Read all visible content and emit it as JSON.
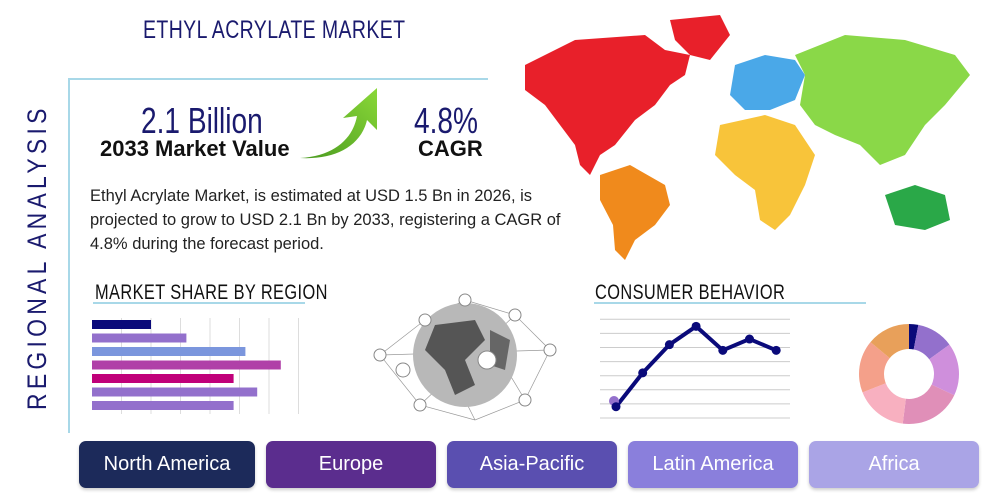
{
  "header": {
    "title": "ETHYL ACRYLATE MARKET",
    "side_label": "REGIONAL ANALYSIS"
  },
  "stats": {
    "market_value": "2.1 Billion",
    "market_value_label": "2033 Market Value",
    "cagr": "4.8%",
    "cagr_label": "CAGR"
  },
  "description": "Ethyl Acrylate Market, is estimated at USD 1.5 Bn in 2026, is projected to grow to USD 2.1 Bn by 2033, registering a CAGR of 4.8% during the forecast period.",
  "sections": {
    "market_share": "MARKET SHARE BY REGION",
    "consumer_behavior": "CONSUMER BEHAVIOR"
  },
  "chart_data": [
    {
      "type": "bar",
      "orientation": "horizontal",
      "values": [
        2,
        3.2,
        5.2,
        6.4,
        4.8,
        5.6,
        4.8
      ],
      "colors": [
        "#0a0a7a",
        "#9370cc",
        "#7b96dd",
        "#b040a8",
        "#c0007a",
        "#9370cc",
        "#9370cc"
      ],
      "xlim": [
        0,
        7
      ],
      "grid": true
    },
    {
      "type": "line",
      "values": [
        0.8,
        3.2,
        5.2,
        6.5,
        4.8,
        5.6,
        4.8
      ],
      "color": "#0a0a7a",
      "ylim": [
        0,
        7
      ],
      "grid": true
    },
    {
      "type": "pie",
      "donut": true,
      "values": [
        3,
        12,
        17,
        20,
        17,
        17,
        14
      ],
      "colors": [
        "#0a0a7a",
        "#9370cc",
        "#cf8fdc",
        "#e08fb8",
        "#f8b0c0",
        "#f4a08a",
        "#e8a05a"
      ]
    }
  ],
  "regions": [
    {
      "label": "North America",
      "color": "#1c2a5a"
    },
    {
      "label": "Europe",
      "color": "#5b2d8e"
    },
    {
      "label": "Asia-Pacific",
      "color": "#5a4fb0"
    },
    {
      "label": "Latin America",
      "color": "#8a7fdc"
    },
    {
      "label": "Africa",
      "color": "#aaa4e6"
    }
  ],
  "map_colors": {
    "north_america": "#e8202a",
    "south_america": "#f08a1c",
    "europe": "#4aa8e8",
    "africa": "#f8c43a",
    "asia": "#8ad848",
    "oceania": "#2aa848",
    "greenland": "#e8202a"
  }
}
